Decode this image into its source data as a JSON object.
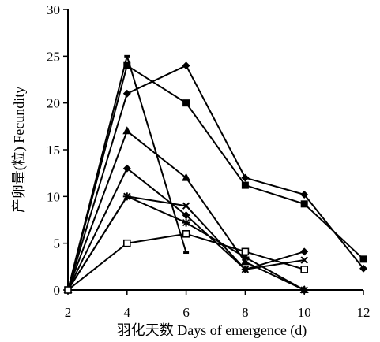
{
  "chart_data": {
    "type": "line",
    "xlabel": "羽化天数 Days of emergence (d)",
    "ylabel": "产卵量(粒) Fecundity",
    "xlim": [
      2,
      12
    ],
    "ylim": [
      0,
      30
    ],
    "x_ticks": [
      "2",
      "4",
      "6",
      "8",
      "10",
      "12"
    ],
    "y_ticks": [
      "0",
      "5",
      "10",
      "15",
      "20",
      "25",
      "30"
    ],
    "grid": false,
    "legend": "none",
    "series": [
      {
        "marker": "diamond",
        "points": [
          [
            2,
            0
          ],
          [
            4,
            21
          ],
          [
            6,
            24
          ],
          [
            8,
            12
          ],
          [
            10,
            10.2
          ],
          [
            12,
            2.3
          ]
        ]
      },
      {
        "marker": "square",
        "points": [
          [
            2,
            0
          ],
          [
            4,
            24
          ],
          [
            6,
            20
          ],
          [
            8,
            11.2
          ],
          [
            10,
            9.2
          ],
          [
            12,
            3.3
          ]
        ]
      },
      {
        "marker": "dash",
        "points": [
          [
            2,
            0
          ],
          [
            4,
            25
          ],
          [
            6,
            4
          ]
        ]
      },
      {
        "marker": "triangle",
        "points": [
          [
            2,
            0
          ],
          [
            4,
            17
          ],
          [
            6,
            12
          ],
          [
            8,
            3
          ],
          [
            10,
            0
          ]
        ]
      },
      {
        "marker": "diamond",
        "points": [
          [
            2,
            0
          ],
          [
            4,
            13
          ],
          [
            6,
            8
          ],
          [
            8,
            2.2
          ],
          [
            10,
            4.1
          ]
        ]
      },
      {
        "marker": "x",
        "points": [
          [
            2,
            0
          ],
          [
            4,
            10
          ],
          [
            6,
            9
          ],
          [
            8,
            2.2
          ],
          [
            10,
            3.2
          ]
        ]
      },
      {
        "marker": "asterisk",
        "points": [
          [
            2,
            0
          ],
          [
            4,
            10
          ],
          [
            6,
            7.2
          ],
          [
            8,
            3.5
          ],
          [
            10,
            0
          ]
        ]
      },
      {
        "marker": "open-square",
        "points": [
          [
            2,
            0
          ],
          [
            4,
            5
          ],
          [
            6,
            6
          ],
          [
            8,
            4.1
          ],
          [
            10,
            2.2
          ]
        ]
      }
    ]
  }
}
